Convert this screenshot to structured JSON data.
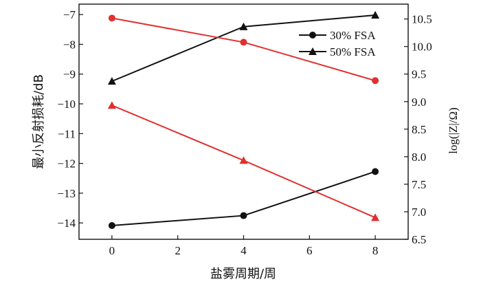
{
  "chart_data": {
    "type": "line",
    "xlabel": "盐雾周期/周",
    "ylabel_left": "最小反射损耗/dB",
    "ylabel_right": "log(|Z|/Ω)",
    "x_ticks": [
      "0",
      "2",
      "4",
      "6",
      "8"
    ],
    "y_left_ticks": [
      "−14",
      "−13",
      "−12",
      "−11",
      "−10",
      "−9",
      "−8",
      "−7"
    ],
    "y_right_ticks": [
      "6.5",
      "7.0",
      "7.5",
      "8.0",
      "8.5",
      "9.0",
      "9.5",
      "10.0",
      "10.5"
    ],
    "xlim": [
      -1,
      9
    ],
    "ylim_left": [
      -14.55,
      -6.65
    ],
    "ylim_right": [
      6.5,
      10.77
    ],
    "legend_position": "top-right",
    "colors": {
      "black": "#111111",
      "red": "#e03030"
    },
    "series": [
      {
        "name": "30% FSA",
        "legend_label": "30% FSA",
        "marker": "circle",
        "color": "#111111",
        "axis": "right",
        "x": [
          0,
          4,
          8
        ],
        "y": [
          6.75,
          6.93,
          7.73
        ]
      },
      {
        "name": "50% FSA",
        "legend_label": "50% FSA",
        "marker": "triangle",
        "color": "#111111",
        "axis": "right",
        "x": [
          0,
          4,
          8
        ],
        "y": [
          9.37,
          10.36,
          10.57
        ]
      },
      {
        "name": "30% FSA",
        "marker": "circle",
        "color": "#e03030",
        "axis": "left",
        "x": [
          0,
          4,
          8
        ],
        "y": [
          -7.12,
          -7.93,
          -9.22
        ]
      },
      {
        "name": "50% FSA",
        "marker": "triangle",
        "color": "#e03030",
        "axis": "left",
        "x": [
          0,
          4,
          8
        ],
        "y": [
          -10.05,
          -11.9,
          -13.82
        ]
      }
    ]
  }
}
